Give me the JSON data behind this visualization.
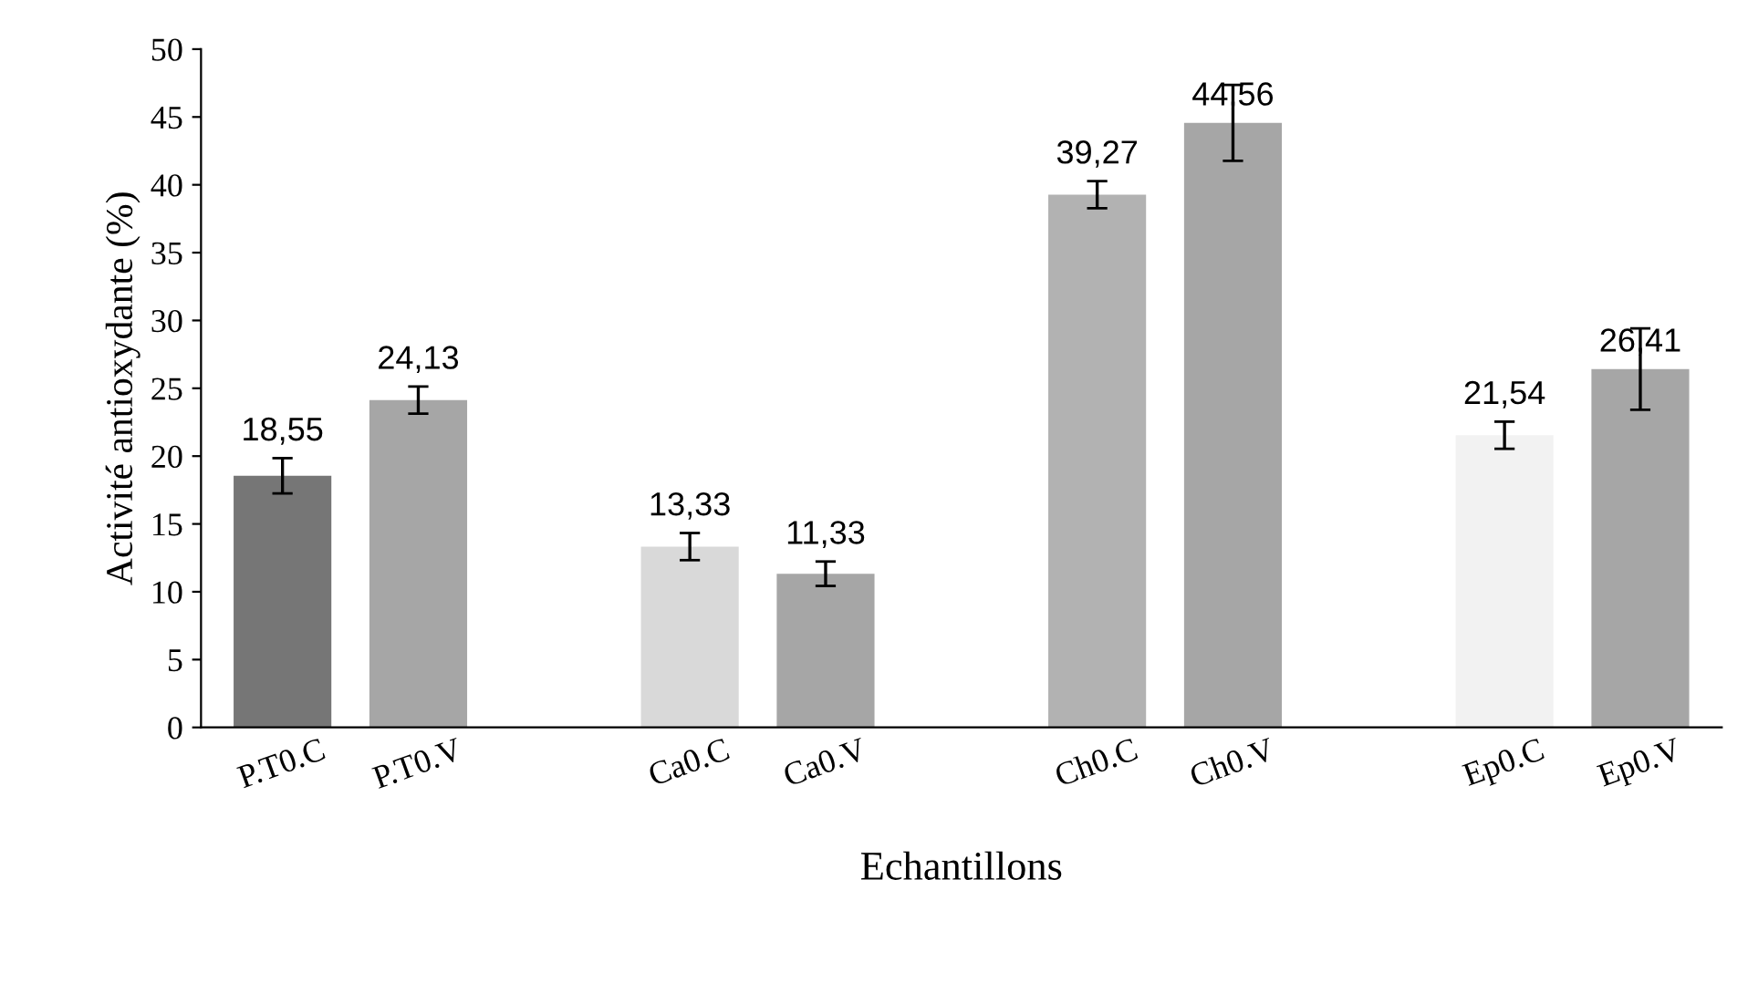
{
  "chart_data": {
    "type": "bar",
    "xlabel": "Echantillons",
    "ylabel": "Activité antioxydante (%)",
    "categories": [
      "P.T0.C",
      "P.T0.V",
      null,
      "Ca0.C",
      "Ca0.V",
      null,
      "Ch0.C",
      "Ch0.V",
      null,
      "Ep0.C",
      "Ep0.V"
    ],
    "values": [
      18.55,
      24.13,
      null,
      13.33,
      11.33,
      null,
      39.27,
      44.56,
      null,
      21.54,
      26.41
    ],
    "value_labels": [
      "18,55",
      "24,13",
      null,
      "13,33",
      "11,33",
      null,
      "39,27",
      "44,56",
      null,
      "21,54",
      "26,41"
    ],
    "errors": [
      1.3,
      1.0,
      null,
      1.0,
      0.9,
      null,
      1.0,
      2.8,
      null,
      1.0,
      3.0
    ],
    "colors": [
      "#767676",
      "#a6a6a6",
      "#ffffff",
      "#d9d9d9",
      "#a6a6a6",
      "#ffffff",
      "#b2b2b2",
      "#a6a6a6",
      "#ffffff",
      "#f2f2f2",
      "#a6a6a6"
    ],
    "ylim": [
      0,
      50
    ],
    "yticks": [
      0,
      5,
      10,
      15,
      20,
      25,
      30,
      35,
      40,
      45,
      50
    ],
    "grid": false,
    "legend": false
  }
}
